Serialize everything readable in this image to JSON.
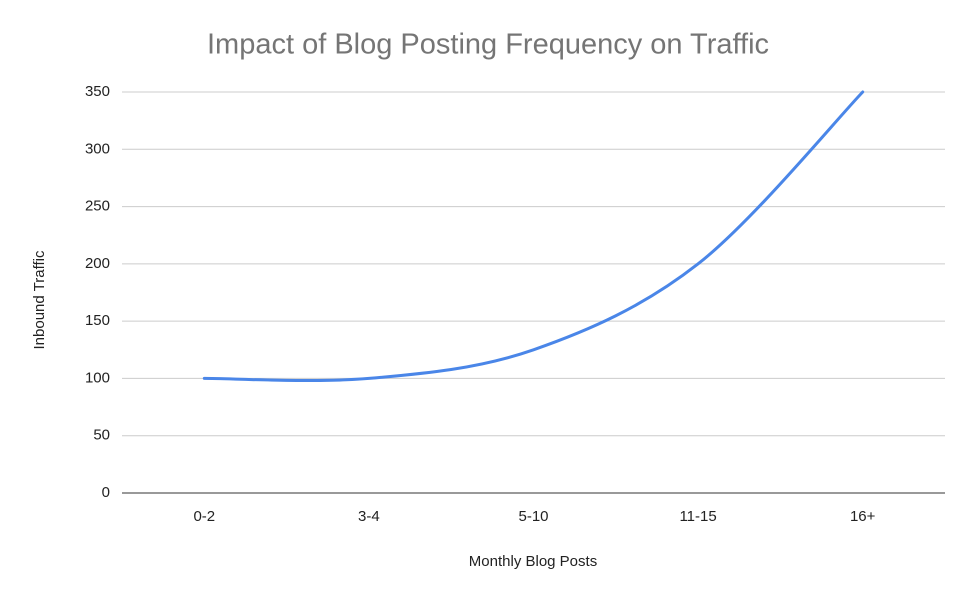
{
  "chart_data": {
    "type": "line",
    "title": "Impact of Blog Posting Frequency on Traffic",
    "x_label": "Monthly Blog Posts",
    "y_label": "Inbound Traffic",
    "categories": [
      "0-2",
      "3-4",
      "5-10",
      "11-15",
      "16+"
    ],
    "series": [
      {
        "name": "Inbound Traffic",
        "color": "#4a86e8",
        "values": [
          100,
          100,
          125,
          200,
          350
        ]
      }
    ],
    "ylim": [
      0,
      350
    ],
    "yticks": [
      0,
      50,
      100,
      150,
      200,
      250,
      300,
      350
    ],
    "grid": true,
    "smooth": true,
    "legend": "none"
  }
}
